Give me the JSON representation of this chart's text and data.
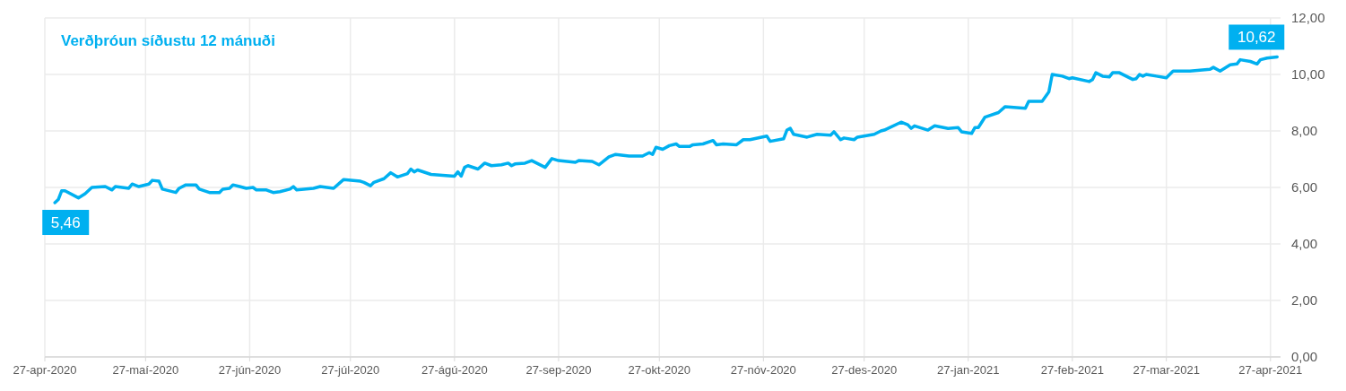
{
  "chart_data": {
    "type": "line",
    "title": "Verðþróun síðustu 12 mánuði",
    "x": [
      "2020-04-30",
      "2020-05-01",
      "2020-05-02",
      "2020-05-03",
      "2020-05-07",
      "2020-05-09",
      "2020-05-11",
      "2020-05-15",
      "2020-05-17",
      "2020-05-18",
      "2020-05-22",
      "2020-05-23",
      "2020-05-25",
      "2020-05-28",
      "2020-05-29",
      "2020-05-31",
      "2020-06-01",
      "2020-06-05",
      "2020-06-06",
      "2020-06-08",
      "2020-06-11",
      "2020-06-12",
      "2020-06-15",
      "2020-06-18",
      "2020-06-19",
      "2020-06-21",
      "2020-06-22",
      "2020-06-24",
      "2020-06-26",
      "2020-06-28",
      "2020-06-29",
      "2020-07-02",
      "2020-07-04",
      "2020-07-06",
      "2020-07-09",
      "2020-07-10",
      "2020-07-11",
      "2020-07-16",
      "2020-07-18",
      "2020-07-22",
      "2020-07-24",
      "2020-07-25",
      "2020-07-30",
      "2020-07-31",
      "2020-08-02",
      "2020-08-03",
      "2020-08-06",
      "2020-08-08",
      "2020-08-10",
      "2020-08-13",
      "2020-08-14",
      "2020-08-15",
      "2020-08-16",
      "2020-08-20",
      "2020-08-27",
      "2020-08-28",
      "2020-08-29",
      "2020-08-30",
      "2020-08-31",
      "2020-09-03",
      "2020-09-05",
      "2020-09-07",
      "2020-09-10",
      "2020-09-12",
      "2020-09-13",
      "2020-09-14",
      "2020-09-17",
      "2020-09-19",
      "2020-09-21",
      "2020-09-23",
      "2020-09-25",
      "2020-09-27",
      "2020-10-02",
      "2020-10-03",
      "2020-10-07",
      "2020-10-09",
      "2020-10-10",
      "2020-10-12",
      "2020-10-14",
      "2020-10-18",
      "2020-10-22",
      "2020-10-24",
      "2020-10-25",
      "2020-10-26",
      "2020-10-28",
      "2020-10-30",
      "2020-11-01",
      "2020-11-02",
      "2020-11-05",
      "2020-11-06",
      "2020-11-09",
      "2020-11-12",
      "2020-11-13",
      "2020-11-15",
      "2020-11-19",
      "2020-11-21",
      "2020-11-23",
      "2020-11-28",
      "2020-11-29",
      "2020-12-03",
      "2020-12-04",
      "2020-12-05",
      "2020-12-06",
      "2020-12-10",
      "2020-12-12",
      "2020-12-13",
      "2020-12-17",
      "2020-12-18",
      "2020-12-20",
      "2020-12-21",
      "2020-12-24",
      "2020-12-25",
      "2020-12-30",
      "2021-01-01",
      "2021-01-02",
      "2021-01-07",
      "2021-01-09",
      "2021-01-10",
      "2021-01-11",
      "2021-01-15",
      "2021-01-17",
      "2021-01-21",
      "2021-01-24",
      "2021-01-25",
      "2021-01-28",
      "2021-01-29",
      "2021-01-30",
      "2021-02-01",
      "2021-02-05",
      "2021-02-07",
      "2021-02-13",
      "2021-02-14",
      "2021-02-18",
      "2021-02-20",
      "2021-02-21",
      "2021-02-24",
      "2021-02-26",
      "2021-02-27",
      "2021-03-04",
      "2021-03-05",
      "2021-03-06",
      "2021-03-08",
      "2021-03-10",
      "2021-03-11",
      "2021-03-13",
      "2021-03-15",
      "2021-03-17",
      "2021-03-18",
      "2021-03-19",
      "2021-03-20",
      "2021-03-21",
      "2021-03-24",
      "2021-03-27",
      "2021-03-29",
      "2021-04-03",
      "2021-04-09",
      "2021-04-10",
      "2021-04-12",
      "2021-04-15",
      "2021-04-17",
      "2021-04-18",
      "2021-04-21",
      "2021-04-23",
      "2021-04-24",
      "2021-04-26",
      "2021-04-29"
    ],
    "series": [
      {
        "color": "#00b0f0",
        "values": [
          5.46,
          5.57,
          5.88,
          5.88,
          5.63,
          5.78,
          6.0,
          6.03,
          5.91,
          6.03,
          5.97,
          6.12,
          6.03,
          6.12,
          6.25,
          6.22,
          5.94,
          5.82,
          5.97,
          6.09,
          6.09,
          5.94,
          5.82,
          5.82,
          5.94,
          5.97,
          6.09,
          6.03,
          5.97,
          6.0,
          5.91,
          5.91,
          5.82,
          5.85,
          5.94,
          6.03,
          5.91,
          5.97,
          6.03,
          5.97,
          6.18,
          6.28,
          6.22,
          6.18,
          6.06,
          6.18,
          6.31,
          6.52,
          6.37,
          6.49,
          6.65,
          6.55,
          6.62,
          6.46,
          6.4,
          6.55,
          6.4,
          6.71,
          6.77,
          6.65,
          6.86,
          6.77,
          6.8,
          6.86,
          6.77,
          6.83,
          6.86,
          6.95,
          6.83,
          6.71,
          7.02,
          6.95,
          6.89,
          6.95,
          6.92,
          6.8,
          6.89,
          7.08,
          7.17,
          7.11,
          7.11,
          7.23,
          7.17,
          7.42,
          7.35,
          7.48,
          7.54,
          7.45,
          7.45,
          7.51,
          7.54,
          7.66,
          7.51,
          7.54,
          7.51,
          7.69,
          7.69,
          7.82,
          7.63,
          7.72,
          8.03,
          8.09,
          7.88,
          7.78,
          7.85,
          7.88,
          7.85,
          7.97,
          7.69,
          7.75,
          7.69,
          7.78,
          7.88,
          8.0,
          8.03,
          8.31,
          8.22,
          8.09,
          8.18,
          8.03,
          8.18,
          8.09,
          8.12,
          7.97,
          7.91,
          8.12,
          8.12,
          8.49,
          8.65,
          8.86,
          8.8,
          9.05,
          9.05,
          9.38,
          10.0,
          9.94,
          9.85,
          9.88,
          9.75,
          9.82,
          10.06,
          9.94,
          9.91,
          10.06,
          10.06,
          9.94,
          9.82,
          9.85,
          10.0,
          9.94,
          10.0,
          9.94,
          9.88,
          10.12,
          10.12,
          10.18,
          10.25,
          10.12,
          10.34,
          10.37,
          10.52,
          10.46,
          10.37,
          10.52,
          10.58,
          10.62
        ]
      }
    ],
    "xlim": [
      "2020-04-27",
      "2021-04-30"
    ],
    "xticks": [
      {
        "value": "2020-04-27",
        "label": "27-apr-2020"
      },
      {
        "value": "2020-05-27",
        "label": "27-maí-2020"
      },
      {
        "value": "2020-06-27",
        "label": "27-jún-2020"
      },
      {
        "value": "2020-07-27",
        "label": "27-júl-2020"
      },
      {
        "value": "2020-08-27",
        "label": "27-ágú-2020"
      },
      {
        "value": "2020-09-27",
        "label": "27-sep-2020"
      },
      {
        "value": "2020-10-27",
        "label": "27-okt-2020"
      },
      {
        "value": "2020-11-27",
        "label": "27-nóv-2020"
      },
      {
        "value": "2020-12-27",
        "label": "27-des-2020"
      },
      {
        "value": "2021-01-27",
        "label": "27-jan-2021"
      },
      {
        "value": "2021-02-27",
        "label": "27-feb-2021"
      },
      {
        "value": "2021-03-27",
        "label": "27-mar-2021"
      },
      {
        "value": "2021-04-27",
        "label": "27-apr-2021"
      }
    ],
    "ylim": [
      0,
      12
    ],
    "yticks": [
      {
        "value": 0,
        "label": "0,00"
      },
      {
        "value": 2,
        "label": "2,00"
      },
      {
        "value": 4,
        "label": "4,00"
      },
      {
        "value": 6,
        "label": "6,00"
      },
      {
        "value": 8,
        "label": "8,00"
      },
      {
        "value": 10,
        "label": "10,00"
      },
      {
        "value": 12,
        "label": "12,00"
      }
    ],
    "grid": true,
    "marker": "none",
    "line_style": "solid",
    "annotations": [
      {
        "text": "5,46",
        "x": "2020-04-30",
        "y": 5.46
      },
      {
        "text": "10,62",
        "x": "2021-04-29",
        "y": 10.62
      }
    ]
  }
}
